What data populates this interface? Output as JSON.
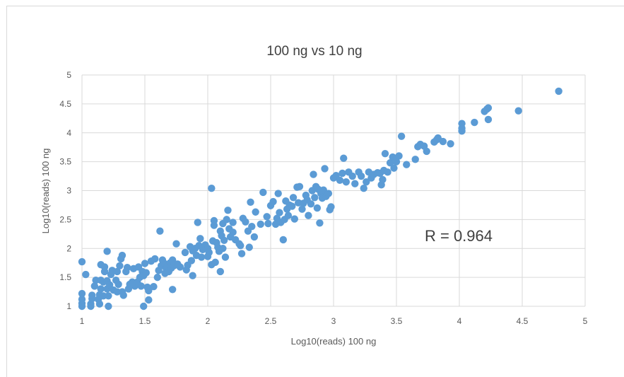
{
  "chart_data": {
    "type": "scatter",
    "title": "100 ng vs 10 ng",
    "xlabel": "Log10(reads) 100 ng",
    "ylabel": "Log10(reads) 100 ng",
    "xlim": [
      1,
      5
    ],
    "ylim": [
      1,
      5
    ],
    "x_ticks": [
      "1",
      "1.5",
      "2",
      "2.5",
      "3",
      "3.5",
      "4",
      "4.5",
      "5"
    ],
    "y_ticks": [
      "1",
      "1.5",
      "2",
      "2.5",
      "3",
      "3.5",
      "4",
      "4.5",
      "5"
    ],
    "grid": true,
    "annotation": "R = 0.964",
    "marker_color": "#5b9bd5",
    "points": [
      [
        1.0,
        1.0
      ],
      [
        1.0,
        1.05
      ],
      [
        1.0,
        1.12
      ],
      [
        1.0,
        1.22
      ],
      [
        1.0,
        1.77
      ],
      [
        1.03,
        1.55
      ],
      [
        1.07,
        1.0
      ],
      [
        1.07,
        1.04
      ],
      [
        1.08,
        1.13
      ],
      [
        1.08,
        1.19
      ],
      [
        1.1,
        1.35
      ],
      [
        1.11,
        1.45
      ],
      [
        1.13,
        1.12
      ],
      [
        1.14,
        1.04
      ],
      [
        1.14,
        1.2
      ],
      [
        1.15,
        1.3
      ],
      [
        1.15,
        1.45
      ],
      [
        1.15,
        1.72
      ],
      [
        1.17,
        1.18
      ],
      [
        1.17,
        1.42
      ],
      [
        1.18,
        1.6
      ],
      [
        1.18,
        1.68
      ],
      [
        1.2,
        1.3
      ],
      [
        1.2,
        1.44
      ],
      [
        1.2,
        1.95
      ],
      [
        1.21,
        1.0
      ],
      [
        1.21,
        1.18
      ],
      [
        1.22,
        1.37
      ],
      [
        1.23,
        1.55
      ],
      [
        1.24,
        1.62
      ],
      [
        1.25,
        1.28
      ],
      [
        1.27,
        1.45
      ],
      [
        1.28,
        1.25
      ],
      [
        1.28,
        1.6
      ],
      [
        1.29,
        1.38
      ],
      [
        1.3,
        1.7
      ],
      [
        1.31,
        1.82
      ],
      [
        1.32,
        1.88
      ],
      [
        1.32,
        1.25
      ],
      [
        1.33,
        1.19
      ],
      [
        1.35,
        1.6
      ],
      [
        1.36,
        1.67
      ],
      [
        1.37,
        1.3
      ],
      [
        1.38,
        1.38
      ],
      [
        1.4,
        1.42
      ],
      [
        1.41,
        1.65
      ],
      [
        1.42,
        1.35
      ],
      [
        1.44,
        1.42
      ],
      [
        1.45,
        1.68
      ],
      [
        1.46,
        1.5
      ],
      [
        1.47,
        1.35
      ],
      [
        1.48,
        1.6
      ],
      [
        1.49,
        1.53
      ],
      [
        1.49,
        1.0
      ],
      [
        1.5,
        1.74
      ],
      [
        1.51,
        1.58
      ],
      [
        1.52,
        1.33
      ],
      [
        1.53,
        1.27
      ],
      [
        1.53,
        1.11
      ],
      [
        1.55,
        1.78
      ],
      [
        1.57,
        1.34
      ],
      [
        1.58,
        1.82
      ],
      [
        1.6,
        1.5
      ],
      [
        1.61,
        1.62
      ],
      [
        1.62,
        2.3
      ],
      [
        1.63,
        1.7
      ],
      [
        1.64,
        1.8
      ],
      [
        1.65,
        1.75
      ],
      [
        1.66,
        1.57
      ],
      [
        1.67,
        1.65
      ],
      [
        1.68,
        1.7
      ],
      [
        1.69,
        1.6
      ],
      [
        1.7,
        1.75
      ],
      [
        1.71,
        1.66
      ],
      [
        1.72,
        1.29
      ],
      [
        1.72,
        1.8
      ],
      [
        1.73,
        1.7
      ],
      [
        1.75,
        2.08
      ],
      [
        1.76,
        1.73
      ],
      [
        1.78,
        1.68
      ],
      [
        1.82,
        1.93
      ],
      [
        1.83,
        1.63
      ],
      [
        1.84,
        1.71
      ],
      [
        1.86,
        2.03
      ],
      [
        1.87,
        1.79
      ],
      [
        1.88,
        1.53
      ],
      [
        1.88,
        1.96
      ],
      [
        1.9,
        2.0
      ],
      [
        1.91,
        1.88
      ],
      [
        1.92,
        2.45
      ],
      [
        1.93,
        2.05
      ],
      [
        1.94,
        2.17
      ],
      [
        1.95,
        1.85
      ],
      [
        1.96,
        1.98
      ],
      [
        1.98,
        2.06
      ],
      [
        2.0,
        2.0
      ],
      [
        2.0,
        1.86
      ],
      [
        2.01,
        1.93
      ],
      [
        2.03,
        1.72
      ],
      [
        2.03,
        3.04
      ],
      [
        2.04,
        2.13
      ],
      [
        2.05,
        2.4
      ],
      [
        2.05,
        2.48
      ],
      [
        2.06,
        1.76
      ],
      [
        2.07,
        2.1
      ],
      [
        2.08,
        2.02
      ],
      [
        2.09,
        1.95
      ],
      [
        2.1,
        1.6
      ],
      [
        2.1,
        2.3
      ],
      [
        2.11,
        2.22
      ],
      [
        2.12,
        2.43
      ],
      [
        2.12,
        2.0
      ],
      [
        2.13,
        2.14
      ],
      [
        2.14,
        1.85
      ],
      [
        2.15,
        2.5
      ],
      [
        2.16,
        2.66
      ],
      [
        2.17,
        2.34
      ],
      [
        2.18,
        2.2
      ],
      [
        2.2,
        2.28
      ],
      [
        2.2,
        2.45
      ],
      [
        2.22,
        2.15
      ],
      [
        2.25,
        2.08
      ],
      [
        2.26,
        2.05
      ],
      [
        2.27,
        1.91
      ],
      [
        2.28,
        2.52
      ],
      [
        2.3,
        2.46
      ],
      [
        2.32,
        2.3
      ],
      [
        2.33,
        2.02
      ],
      [
        2.34,
        2.8
      ],
      [
        2.35,
        2.38
      ],
      [
        2.37,
        2.2
      ],
      [
        2.38,
        2.63
      ],
      [
        2.42,
        2.42
      ],
      [
        2.44,
        2.97
      ],
      [
        2.47,
        2.55
      ],
      [
        2.48,
        2.43
      ],
      [
        2.5,
        2.74
      ],
      [
        2.52,
        2.81
      ],
      [
        2.54,
        2.42
      ],
      [
        2.55,
        2.52
      ],
      [
        2.56,
        2.95
      ],
      [
        2.57,
        2.62
      ],
      [
        2.58,
        2.45
      ],
      [
        2.6,
        2.15
      ],
      [
        2.61,
        2.5
      ],
      [
        2.62,
        2.82
      ],
      [
        2.63,
        2.68
      ],
      [
        2.64,
        2.57
      ],
      [
        2.65,
        2.75
      ],
      [
        2.67,
        2.73
      ],
      [
        2.68,
        2.88
      ],
      [
        2.69,
        2.51
      ],
      [
        2.71,
        3.06
      ],
      [
        2.72,
        2.79
      ],
      [
        2.73,
        3.07
      ],
      [
        2.75,
        2.68
      ],
      [
        2.76,
        2.78
      ],
      [
        2.78,
        2.92
      ],
      [
        2.79,
        2.84
      ],
      [
        2.8,
        2.57
      ],
      [
        2.82,
        2.77
      ],
      [
        2.83,
        3.0
      ],
      [
        2.84,
        3.28
      ],
      [
        2.85,
        2.88
      ],
      [
        2.86,
        3.07
      ],
      [
        2.87,
        2.7
      ],
      [
        2.88,
        3.02
      ],
      [
        2.89,
        2.44
      ],
      [
        2.9,
        2.95
      ],
      [
        2.91,
        2.87
      ],
      [
        2.92,
        3.01
      ],
      [
        2.93,
        3.38
      ],
      [
        2.94,
        2.9
      ],
      [
        2.96,
        2.95
      ],
      [
        2.97,
        2.67
      ],
      [
        2.98,
        2.72
      ],
      [
        3.0,
        3.22
      ],
      [
        3.02,
        3.26
      ],
      [
        3.05,
        3.18
      ],
      [
        3.07,
        3.3
      ],
      [
        3.08,
        3.56
      ],
      [
        3.1,
        3.15
      ],
      [
        3.12,
        3.32
      ],
      [
        3.15,
        3.25
      ],
      [
        3.17,
        3.12
      ],
      [
        3.2,
        3.32
      ],
      [
        3.22,
        3.25
      ],
      [
        3.24,
        3.04
      ],
      [
        3.26,
        3.15
      ],
      [
        3.28,
        3.32
      ],
      [
        3.3,
        3.22
      ],
      [
        3.32,
        3.28
      ],
      [
        3.35,
        3.31
      ],
      [
        3.37,
        3.3
      ],
      [
        3.38,
        3.1
      ],
      [
        3.39,
        3.19
      ],
      [
        3.4,
        3.35
      ],
      [
        3.41,
        3.64
      ],
      [
        3.43,
        3.32
      ],
      [
        3.45,
        3.48
      ],
      [
        3.47,
        3.58
      ],
      [
        3.48,
        3.39
      ],
      [
        3.5,
        3.5
      ],
      [
        3.52,
        3.6
      ],
      [
        3.54,
        3.94
      ],
      [
        3.58,
        3.45
      ],
      [
        3.65,
        3.54
      ],
      [
        3.67,
        3.76
      ],
      [
        3.69,
        3.8
      ],
      [
        3.72,
        3.77
      ],
      [
        3.74,
        3.68
      ],
      [
        3.8,
        3.84
      ],
      [
        3.82,
        3.88
      ],
      [
        3.83,
        3.91
      ],
      [
        3.87,
        3.85
      ],
      [
        3.93,
        3.81
      ],
      [
        4.02,
        4.03
      ],
      [
        4.02,
        4.08
      ],
      [
        4.02,
        4.16
      ],
      [
        4.12,
        4.18
      ],
      [
        4.2,
        4.37
      ],
      [
        4.22,
        4.41
      ],
      [
        4.23,
        4.43
      ],
      [
        4.23,
        4.23
      ],
      [
        4.47,
        4.38
      ],
      [
        4.79,
        4.72
      ]
    ]
  }
}
